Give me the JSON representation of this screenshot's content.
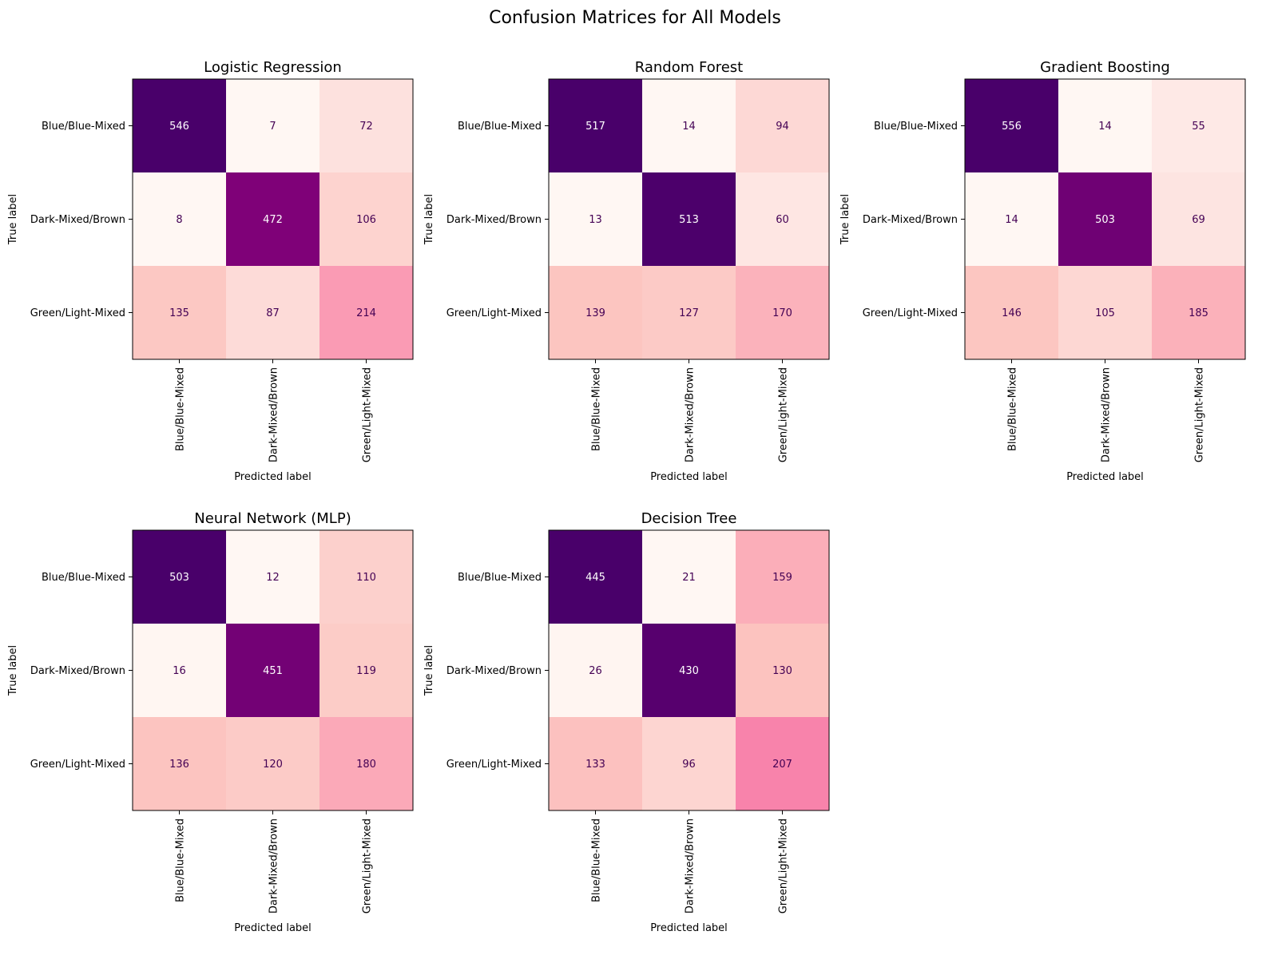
{
  "figure": {
    "title": "Confusion Matrices for All Models",
    "colormap": "RdPu",
    "colormap_stops": [
      "#fff7f3",
      "#fde0dd",
      "#fcc5c0",
      "#fa9fb5",
      "#f768a1",
      "#dd3497",
      "#ae017e",
      "#7a0177",
      "#49006a"
    ]
  },
  "chart_data": [
    {
      "type": "heatmap",
      "title": "Logistic Regression",
      "xlabel": "Predicted label",
      "ylabel": "True label",
      "categories": [
        "Blue/Blue-Mixed",
        "Dark-Mixed/Brown",
        "Green/Light-Mixed"
      ],
      "values": [
        [
          546,
          7,
          72
        ],
        [
          8,
          472,
          106
        ],
        [
          135,
          87,
          214
        ]
      ]
    },
    {
      "type": "heatmap",
      "title": "Random Forest",
      "xlabel": "Predicted label",
      "ylabel": "True label",
      "categories": [
        "Blue/Blue-Mixed",
        "Dark-Mixed/Brown",
        "Green/Light-Mixed"
      ],
      "values": [
        [
          517,
          14,
          94
        ],
        [
          13,
          513,
          60
        ],
        [
          139,
          127,
          170
        ]
      ]
    },
    {
      "type": "heatmap",
      "title": "Gradient Boosting",
      "xlabel": "Predicted label",
      "ylabel": "True label",
      "categories": [
        "Blue/Blue-Mixed",
        "Dark-Mixed/Brown",
        "Green/Light-Mixed"
      ],
      "values": [
        [
          556,
          14,
          55
        ],
        [
          14,
          503,
          69
        ],
        [
          146,
          105,
          185
        ]
      ]
    },
    {
      "type": "heatmap",
      "title": "Neural Network (MLP)",
      "xlabel": "Predicted label",
      "ylabel": "True label",
      "categories": [
        "Blue/Blue-Mixed",
        "Dark-Mixed/Brown",
        "Green/Light-Mixed"
      ],
      "values": [
        [
          503,
          12,
          110
        ],
        [
          16,
          451,
          119
        ],
        [
          136,
          120,
          180
        ]
      ]
    },
    {
      "type": "heatmap",
      "title": "Decision Tree",
      "xlabel": "Predicted label",
      "ylabel": "True label",
      "categories": [
        "Blue/Blue-Mixed",
        "Dark-Mixed/Brown",
        "Green/Light-Mixed"
      ],
      "values": [
        [
          445,
          21,
          159
        ],
        [
          26,
          430,
          130
        ],
        [
          133,
          96,
          207
        ]
      ]
    }
  ]
}
